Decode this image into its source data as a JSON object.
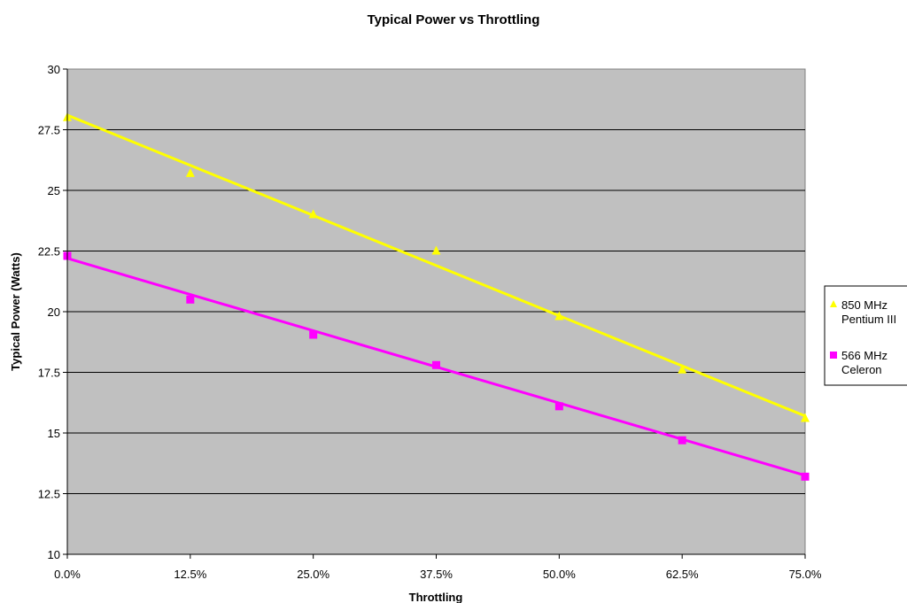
{
  "chart_data": {
    "type": "scatter",
    "title": "Typical Power vs Throttling",
    "xlabel": "Throttling",
    "ylabel": "Typical Power (Watts)",
    "x": [
      0.0,
      12.5,
      25.0,
      37.5,
      50.0,
      62.5,
      75.0
    ],
    "x_tick_labels": [
      "0.0%",
      "12.5%",
      "25.0%",
      "37.5%",
      "50.0%",
      "62.5%",
      "75.0%"
    ],
    "xlim": [
      0,
      75
    ],
    "ylim": [
      10,
      30
    ],
    "y_ticks": [
      10,
      12.5,
      15,
      17.5,
      20,
      22.5,
      25,
      27.5,
      30
    ],
    "y_tick_labels": [
      "10",
      "12.5",
      "15",
      "17.5",
      "20",
      "22.5",
      "25",
      "27.5",
      "30"
    ],
    "grid": "horizontal",
    "plot_background": "#c0c0c0",
    "legend_position": "right",
    "series": [
      {
        "name": [
          "850 MHz",
          "Pentium III"
        ],
        "marker": "triangle",
        "color": "#ffff00",
        "values": [
          28.0,
          25.7,
          24.0,
          22.5,
          19.8,
          17.6,
          15.6
        ],
        "trendline": [
          28.1,
          15.7
        ]
      },
      {
        "name": [
          "566 MHz",
          "Celeron"
        ],
        "marker": "square",
        "color": "#ff00ff",
        "values": [
          22.3,
          20.5,
          19.05,
          17.8,
          16.1,
          14.7,
          13.2
        ],
        "trendline": [
          22.2,
          13.25
        ]
      }
    ]
  }
}
